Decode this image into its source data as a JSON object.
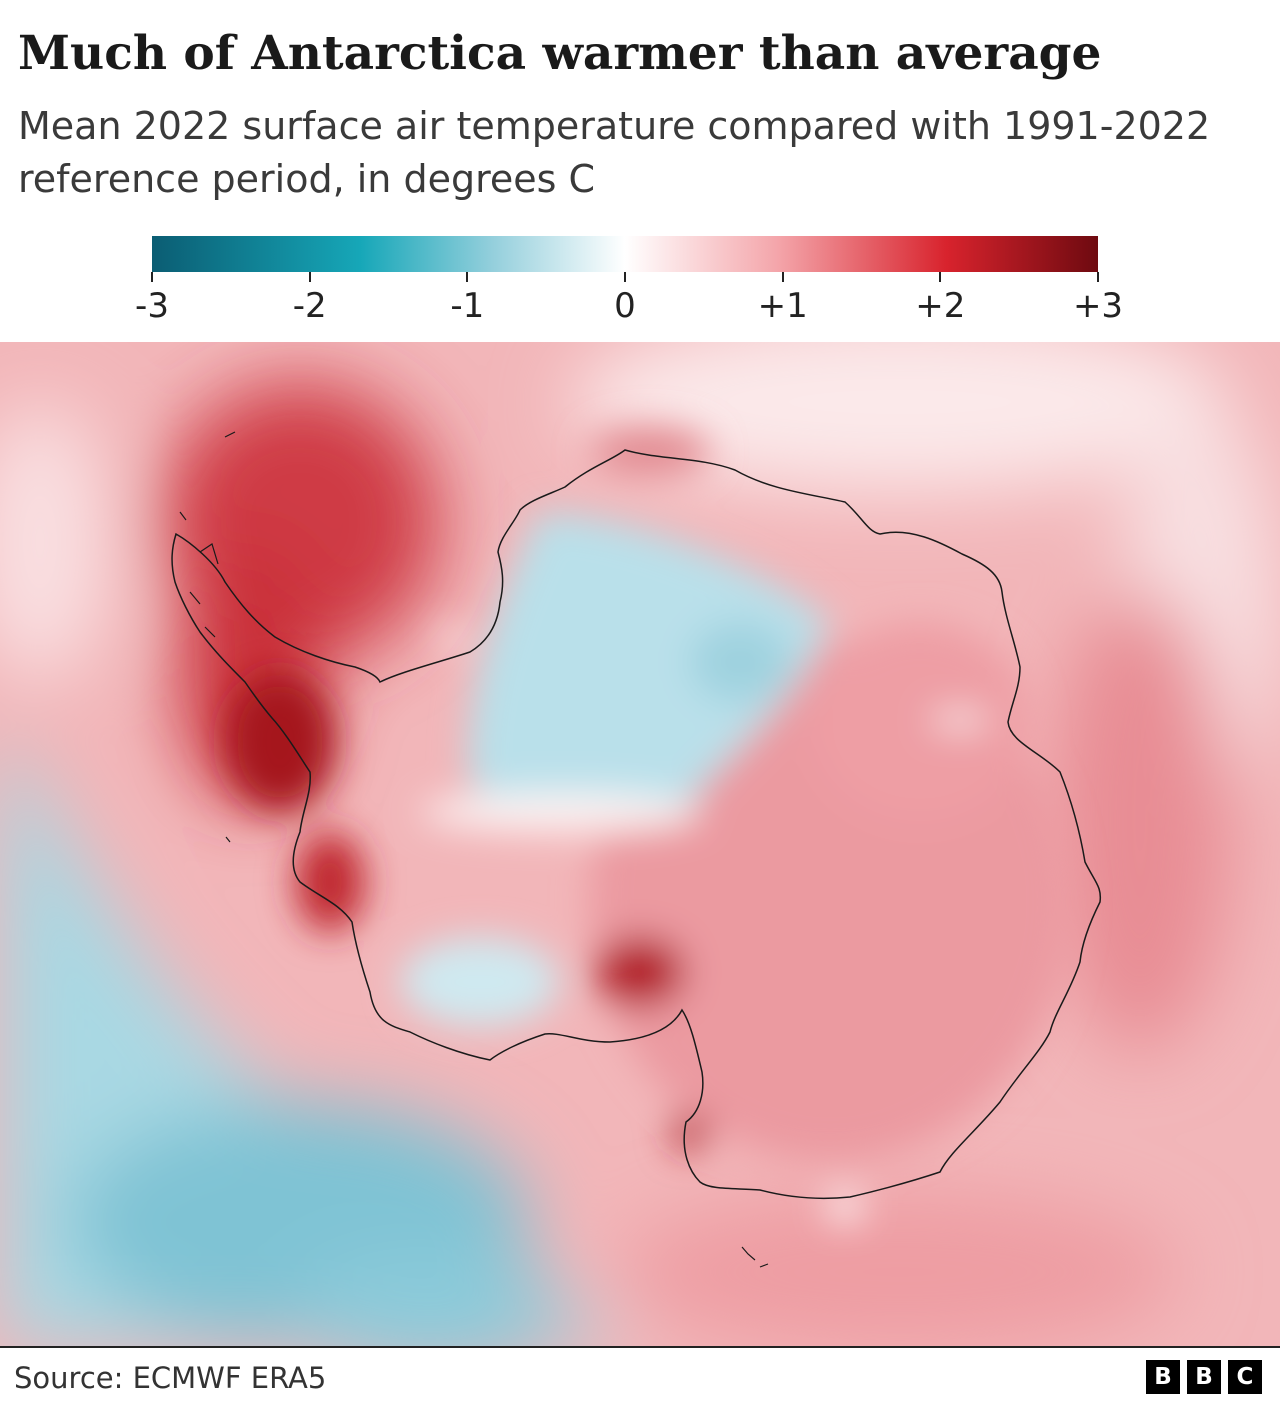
{
  "title": "Much of Antarctica warmer than average",
  "subtitle": "Mean 2022 surface air temperature compared with 1991-2022 reference period, in degrees C",
  "legend": {
    "ticks": [
      {
        "value": -3,
        "label": "-3"
      },
      {
        "value": -2,
        "label": "-2"
      },
      {
        "value": -1,
        "label": "-1"
      },
      {
        "value": 0,
        "label": "0"
      },
      {
        "value": 1,
        "label": "+1"
      },
      {
        "value": 2,
        "label": "+2"
      },
      {
        "value": 3,
        "label": "+3"
      }
    ],
    "range": [
      -3,
      3
    ],
    "colors": {
      "neg3": "#0b5d73",
      "neg2": "#16a7b8",
      "neg1": "#94cfdc",
      "zero": "#ffffff",
      "pos1": "#f4a6ab",
      "pos2": "#d8232d",
      "pos3": "#6e0a10"
    }
  },
  "map": {
    "background_color": "#f2b6b9",
    "outline_color": "#1a1a1a"
  },
  "source": "Source: ECMWF ERA5",
  "logo": [
    "B",
    "B",
    "C"
  ]
}
